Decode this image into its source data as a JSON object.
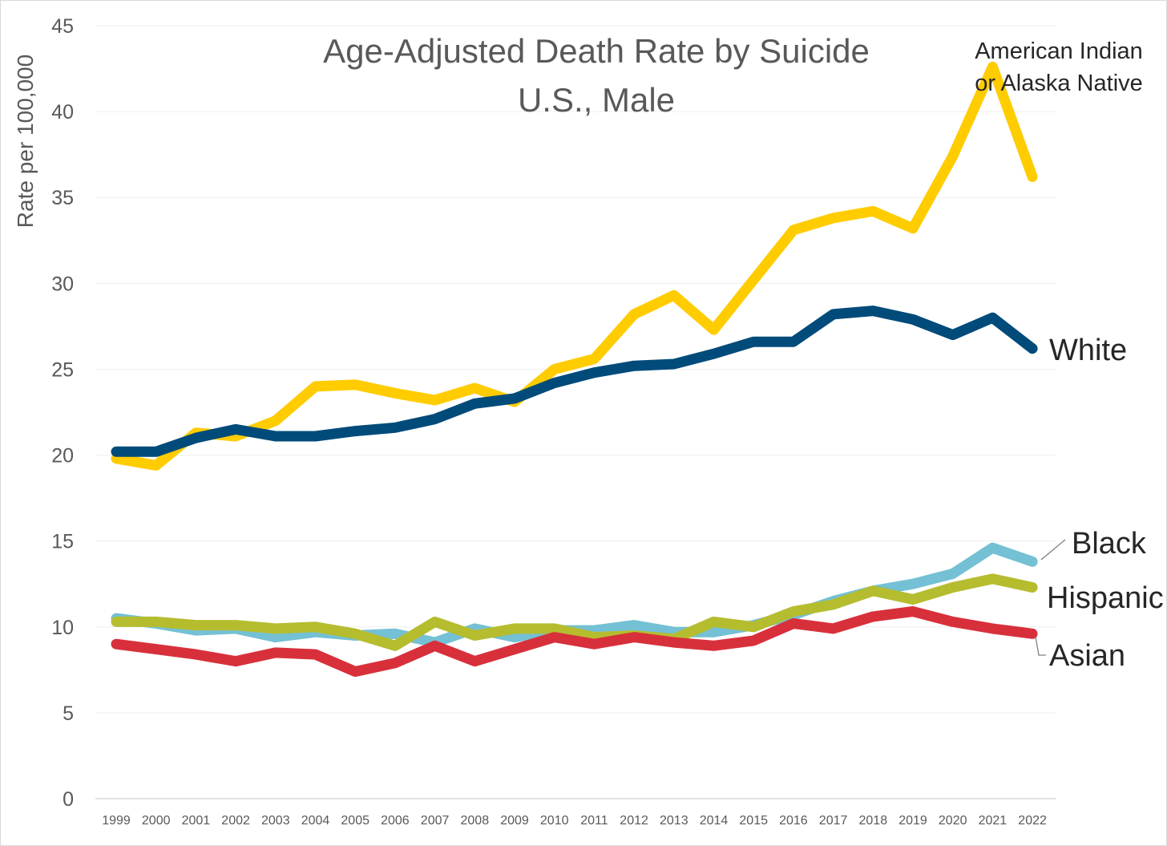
{
  "chart_data": {
    "type": "line",
    "title": "Age-Adjusted Death Rate by Suicide",
    "subtitle": "U.S., Male",
    "xlabel": "",
    "ylabel": "Rate per 100,000",
    "ylim": [
      0,
      45
    ],
    "yticks": [
      0,
      5,
      10,
      15,
      20,
      25,
      30,
      35,
      40,
      45
    ],
    "grid": true,
    "legend": "direct labels at line ends",
    "categories": [
      "1999",
      "2000",
      "2001",
      "2002",
      "2003",
      "2004",
      "2005",
      "2006",
      "2007",
      "2008",
      "2009",
      "2010",
      "2011",
      "2012",
      "2013",
      "2014",
      "2015",
      "2016",
      "2017",
      "2018",
      "2019",
      "2020",
      "2021",
      "2022"
    ],
    "series": [
      {
        "name": "American Indian or Alaska Native",
        "label_lines": [
          "American Indian",
          "or Alaska Native"
        ],
        "color": "#FFCC00",
        "values": [
          19.8,
          19.4,
          21.3,
          21.1,
          22.0,
          24.0,
          24.1,
          23.6,
          23.2,
          23.9,
          23.1,
          25.0,
          25.6,
          28.2,
          29.3,
          27.3,
          30.2,
          33.1,
          33.8,
          34.2,
          33.2,
          37.4,
          42.6,
          36.2
        ]
      },
      {
        "name": "White",
        "label_lines": [
          "White"
        ],
        "color": "#004B7A",
        "values": [
          20.2,
          20.2,
          21.0,
          21.5,
          21.1,
          21.1,
          21.4,
          21.6,
          22.1,
          23.0,
          23.3,
          24.2,
          24.8,
          25.2,
          25.3,
          25.9,
          26.6,
          26.6,
          28.2,
          28.4,
          27.9,
          27.0,
          28.0,
          26.2
        ]
      },
      {
        "name": "Black",
        "label_lines": [
          "Black"
        ],
        "color": "#74C0D4",
        "values": [
          10.5,
          10.2,
          9.8,
          9.9,
          9.4,
          9.7,
          9.5,
          9.6,
          9.1,
          9.9,
          9.4,
          9.8,
          9.8,
          10.1,
          9.7,
          9.7,
          10.1,
          10.7,
          11.5,
          12.1,
          12.5,
          13.1,
          14.6,
          13.8
        ]
      },
      {
        "name": "Hispanic",
        "label_lines": [
          "Hispanic"
        ],
        "color": "#B5BD2F",
        "values": [
          10.3,
          10.3,
          10.1,
          10.1,
          9.9,
          10.0,
          9.6,
          8.9,
          10.3,
          9.5,
          9.9,
          9.9,
          9.4,
          9.5,
          9.3,
          10.3,
          10.0,
          10.9,
          11.3,
          12.1,
          11.6,
          12.3,
          12.8,
          12.3
        ]
      },
      {
        "name": "Asian",
        "label_lines": [
          "Asian"
        ],
        "color": "#D8303B",
        "values": [
          9.0,
          8.7,
          8.4,
          8.0,
          8.5,
          8.4,
          7.4,
          7.9,
          8.9,
          8.0,
          8.7,
          9.4,
          9.0,
          9.4,
          9.1,
          8.9,
          9.2,
          10.2,
          9.9,
          10.6,
          10.9,
          10.3,
          9.9,
          9.6
        ]
      }
    ]
  }
}
